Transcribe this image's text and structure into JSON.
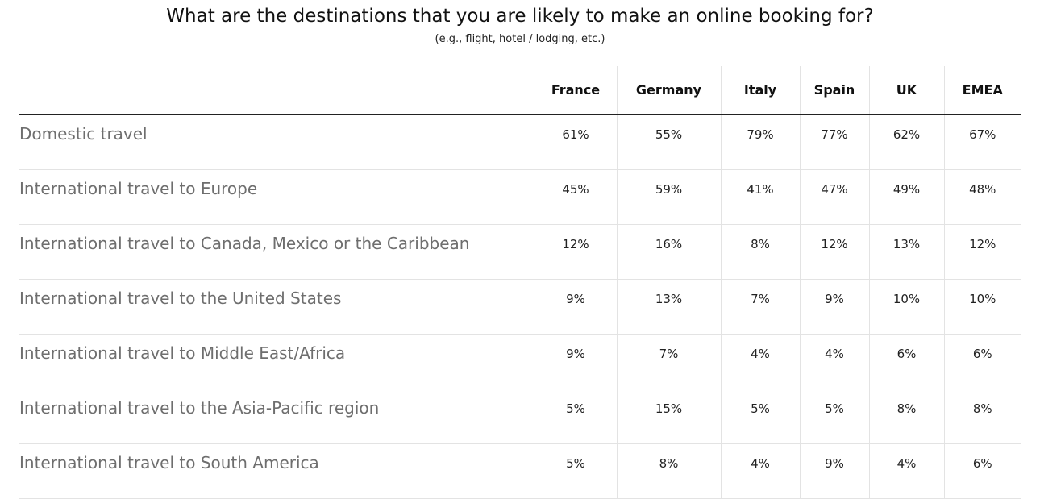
{
  "chart_data": {
    "type": "table",
    "title": "What are the destinations that you are likely to make an online booking for?",
    "subtitle": "(e.g., flight, hotel / lodging, etc.)",
    "columns": [
      "France",
      "Germany",
      "Italy",
      "Spain",
      "UK",
      "EMEA"
    ],
    "rows": [
      {
        "label": "Domestic travel",
        "values": [
          "61%",
          "55%",
          "79%",
          "77%",
          "62%",
          "67%"
        ]
      },
      {
        "label": "International travel to Europe",
        "values": [
          "45%",
          "59%",
          "41%",
          "47%",
          "49%",
          "48%"
        ]
      },
      {
        "label": "International travel to Canada, Mexico or the Caribbean",
        "values": [
          "12%",
          "16%",
          "8%",
          "12%",
          "13%",
          "12%"
        ]
      },
      {
        "label": "International travel to the United States",
        "values": [
          "9%",
          "13%",
          "7%",
          "9%",
          "10%",
          "10%"
        ]
      },
      {
        "label": "International travel to Middle East/Africa",
        "values": [
          "9%",
          "7%",
          "4%",
          "4%",
          "6%",
          "6%"
        ]
      },
      {
        "label": "International travel to the Asia-Pacific region",
        "values": [
          "5%",
          "15%",
          "5%",
          "5%",
          "8%",
          "8%"
        ]
      },
      {
        "label": "International travel to South America",
        "values": [
          "5%",
          "8%",
          "4%",
          "9%",
          "4%",
          "6%"
        ]
      }
    ]
  }
}
